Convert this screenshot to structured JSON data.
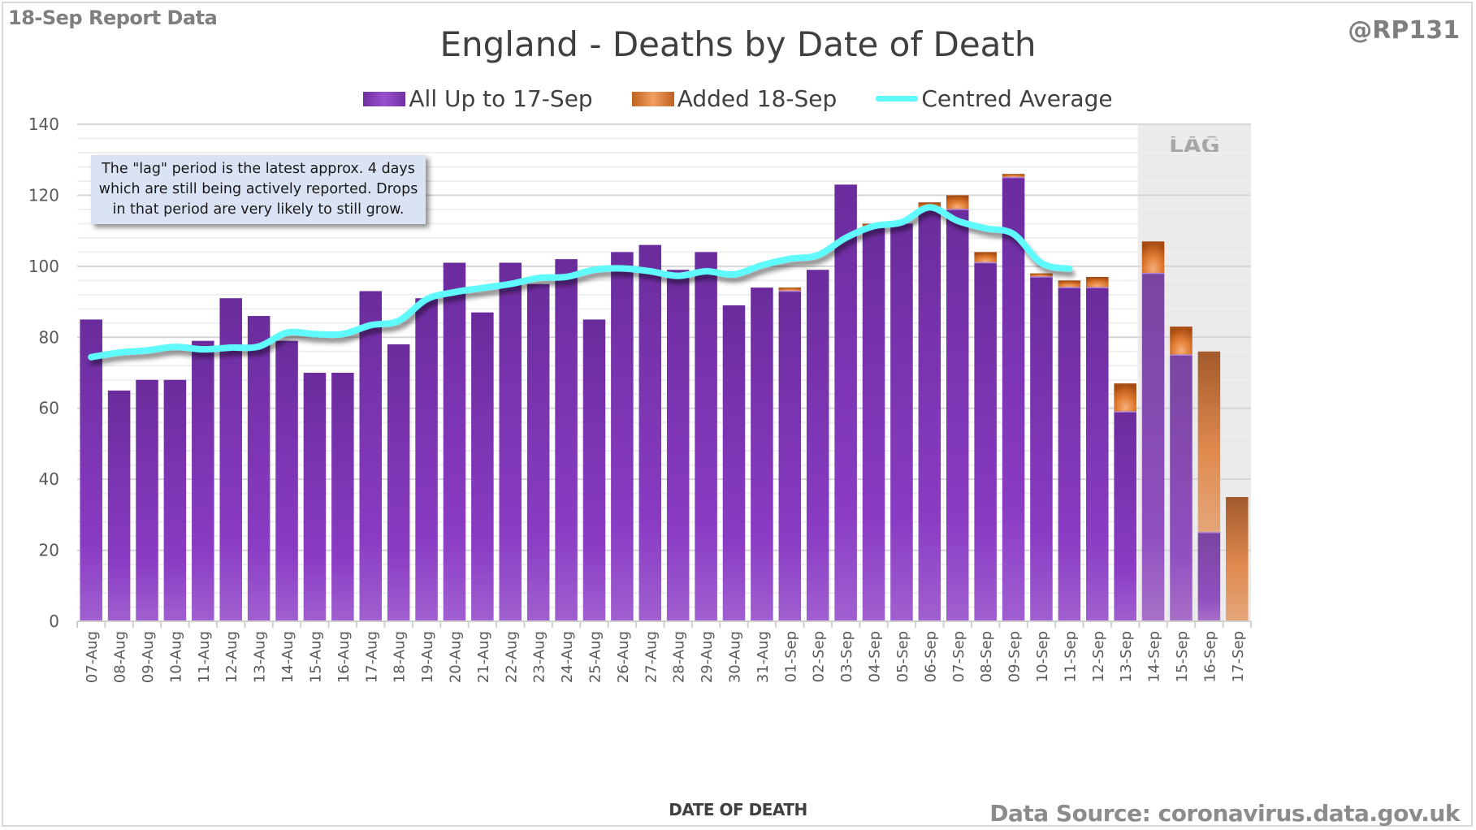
{
  "header": {
    "report_label": "18-Sep Report Data",
    "handle": "@RP131",
    "data_source": "Data Source: coronavirus.data.gov.uk"
  },
  "annotation": {
    "note_line1": "The \"lag\" period is the latest approx. 4 days",
    "note_line2": "which are still being actively reported.  Drops",
    "note_line3": "in that period are very likely to still grow.",
    "lag_label": "LAG"
  },
  "colors": {
    "main": "#7030a0",
    "added": "#d9772e",
    "average": "#5ffbfc",
    "lag_shade": "#ebebeb"
  },
  "chart_data": {
    "type": "bar",
    "stacked": true,
    "title": "England - Deaths by Date of Death",
    "xlabel": "DATE OF DEATH",
    "ylabel": "",
    "ylim": [
      0,
      140
    ],
    "yticks": [
      0,
      20,
      40,
      60,
      80,
      100,
      120,
      140
    ],
    "grid": true,
    "legend": "top-center",
    "lag_region_categories": [
      "14-Sep",
      "15-Sep",
      "16-Sep",
      "17-Sep"
    ],
    "categories": [
      "07-Aug",
      "08-Aug",
      "09-Aug",
      "10-Aug",
      "11-Aug",
      "12-Aug",
      "13-Aug",
      "14-Aug",
      "15-Aug",
      "16-Aug",
      "17-Aug",
      "18-Aug",
      "19-Aug",
      "20-Aug",
      "21-Aug",
      "22-Aug",
      "23-Aug",
      "24-Aug",
      "25-Aug",
      "26-Aug",
      "27-Aug",
      "28-Aug",
      "29-Aug",
      "30-Aug",
      "31-Aug",
      "01-Sep",
      "02-Sep",
      "03-Sep",
      "04-Sep",
      "05-Sep",
      "06-Sep",
      "07-Sep",
      "08-Sep",
      "09-Sep",
      "10-Sep",
      "11-Sep",
      "12-Sep",
      "13-Sep",
      "14-Sep",
      "15-Sep",
      "16-Sep",
      "17-Sep"
    ],
    "series": [
      {
        "name": "All Up to 17-Sep",
        "kind": "bar",
        "values": [
          85,
          65,
          68,
          68,
          79,
          91,
          86,
          79,
          70,
          70,
          93,
          78,
          91,
          101,
          87,
          101,
          95,
          102,
          85,
          104,
          106,
          99,
          104,
          89,
          94,
          93,
          99,
          123,
          111,
          112,
          116,
          116,
          101,
          125,
          97,
          94,
          94,
          59,
          98,
          75,
          25,
          0
        ]
      },
      {
        "name": "Added 18-Sep",
        "kind": "bar",
        "values": [
          0,
          0,
          0,
          0,
          0,
          0,
          0,
          0,
          0,
          0,
          0,
          0,
          0,
          0,
          0,
          0,
          0,
          0,
          0,
          0,
          0,
          0,
          0,
          0,
          0,
          1,
          0,
          0,
          1,
          0,
          2,
          4,
          3,
          1,
          1,
          2,
          3,
          8,
          9,
          8,
          51,
          35
        ]
      },
      {
        "name": "Centred Average",
        "kind": "line",
        "values": [
          74.4,
          75.7,
          76.3,
          77.3,
          76.6,
          77.1,
          77.4,
          81.3,
          80.9,
          80.9,
          83.4,
          84.6,
          90.7,
          92.7,
          93.9,
          95.0,
          96.7,
          97.0,
          99.0,
          99.4,
          98.6,
          97.3,
          98.6,
          97.7,
          100.3,
          102.1,
          103.1,
          108.0,
          111.3,
          112.4,
          116.6,
          112.8,
          110.7,
          109.1,
          100.9,
          99.3,
          null,
          null,
          null,
          null,
          null,
          null
        ]
      }
    ]
  }
}
